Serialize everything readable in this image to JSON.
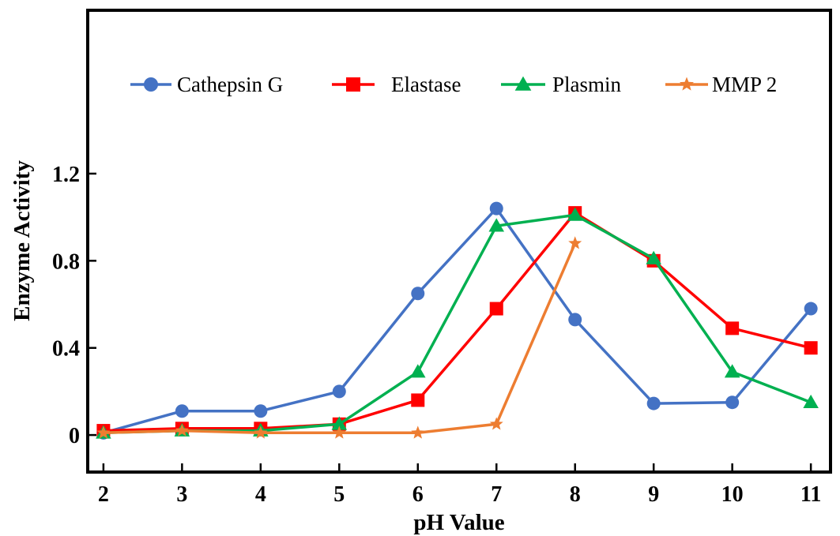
{
  "chart_data": {
    "type": "line",
    "title": "",
    "xlabel": "pH Value",
    "ylabel": "Enzyme Activity",
    "x": [
      2,
      3,
      4,
      5,
      6,
      7,
      8,
      9,
      10,
      11
    ],
    "x_tick_labels": [
      "2",
      "3",
      "4",
      "5",
      "6",
      "7",
      "8",
      "9",
      "10",
      "11"
    ],
    "y_tick_labels": [
      "0",
      "0.4",
      "0.8",
      "1.2"
    ],
    "y_ticks": [
      0,
      0.4,
      0.8,
      1.2
    ],
    "xlim": [
      1.8,
      11.25
    ],
    "ylim": [
      -0.17,
      1.95
    ],
    "grid": false,
    "legend_position": "top",
    "series": [
      {
        "name": "Cathepsin G",
        "color": "#4472C4",
        "marker": "circle",
        "values": [
          0.01,
          0.11,
          0.11,
          0.2,
          0.65,
          1.04,
          0.53,
          0.145,
          0.15,
          0.58
        ]
      },
      {
        "name": "Elastase",
        "color": "#FF0000",
        "marker": "square",
        "values": [
          0.02,
          0.03,
          0.03,
          0.05,
          0.16,
          0.58,
          1.02,
          0.8,
          0.49,
          0.4
        ]
      },
      {
        "name": "Plasmin",
        "color": "#00B050",
        "marker": "triangle",
        "values": [
          0.01,
          0.02,
          0.02,
          0.05,
          0.29,
          0.96,
          1.01,
          0.81,
          0.29,
          0.15
        ]
      },
      {
        "name": "MMP 2",
        "color": "#ED7D31",
        "marker": "star",
        "values": [
          0.01,
          0.02,
          0.01,
          0.01,
          0.01,
          0.05,
          0.88,
          null,
          null,
          null
        ]
      }
    ]
  }
}
